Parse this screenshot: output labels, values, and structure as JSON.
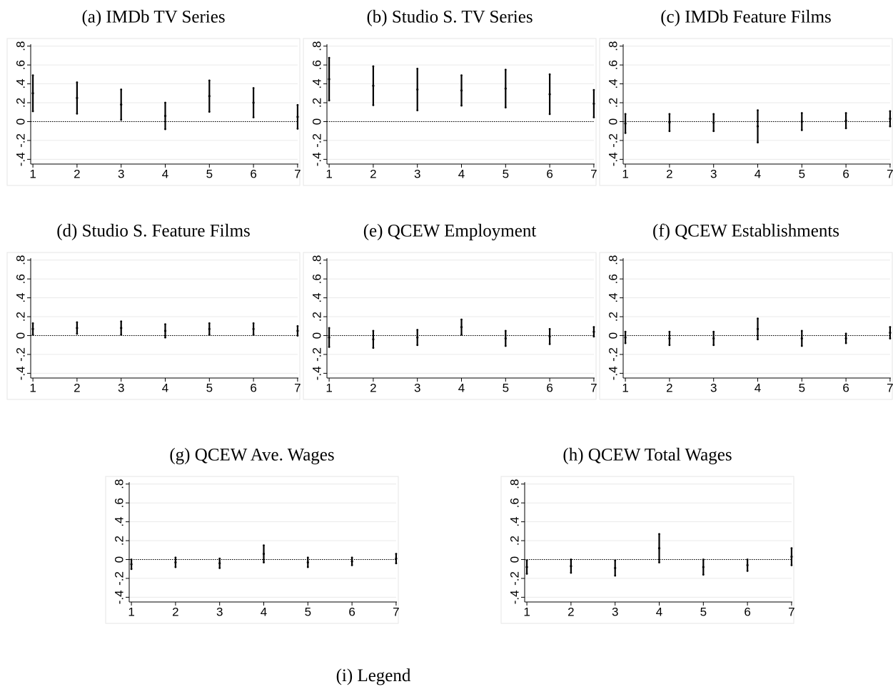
{
  "chart_data": [
    {
      "type": "errorbar",
      "title": "(a) IMDb TV Series",
      "x": [
        1,
        2,
        3,
        4,
        5,
        6,
        7
      ],
      "values": [
        0.3,
        0.25,
        0.18,
        0.06,
        0.27,
        0.2,
        0.05
      ],
      "errors": [
        0.19,
        0.165,
        0.16,
        0.14,
        0.165,
        0.155,
        0.125
      ],
      "xlim": [
        0.95,
        7.05
      ],
      "xticks": [
        1,
        2,
        3,
        4,
        5,
        6,
        7
      ],
      "ylim": [
        -0.45,
        0.82
      ],
      "yticks": [
        {
          "value": -0.4,
          "label": "-.4"
        },
        {
          "value": -0.2,
          "label": "-.2"
        },
        0,
        {
          "value": 0.2,
          "label": ".2"
        },
        {
          "value": 0.4,
          "label": ".4"
        },
        {
          "value": 0.6,
          "label": ".6"
        },
        {
          "value": 0.8,
          "label": ".8"
        }
      ],
      "grid": true,
      "hline": 0,
      "color": "#000000"
    },
    {
      "type": "errorbar",
      "title": "(b) Studio S. TV Series",
      "x": [
        1,
        2,
        3,
        4,
        5,
        6,
        7
      ],
      "values": [
        0.45,
        0.38,
        0.34,
        0.33,
        0.35,
        0.29,
        0.19
      ],
      "errors": [
        0.225,
        0.205,
        0.22,
        0.16,
        0.2,
        0.21,
        0.145
      ],
      "xlim": [
        0.95,
        7.05
      ],
      "xticks": [
        1,
        2,
        3,
        4,
        5,
        6,
        7
      ],
      "ylim": [
        -0.45,
        0.82
      ],
      "yticks": [
        {
          "value": -0.4,
          "label": "-.4"
        },
        {
          "value": -0.2,
          "label": "-.2"
        },
        0,
        {
          "value": 0.2,
          "label": ".2"
        },
        {
          "value": 0.4,
          "label": ".4"
        },
        {
          "value": 0.6,
          "label": ".6"
        },
        {
          "value": 0.8,
          "label": ".8"
        }
      ],
      "grid": true,
      "hline": 0,
      "color": "#000000"
    },
    {
      "type": "errorbar",
      "title": "(c) IMDb Feature Films",
      "x": [
        1,
        2,
        3,
        4,
        5,
        6,
        7
      ],
      "values": [
        -0.02,
        -0.01,
        -0.01,
        -0.05,
        0.0,
        0.01,
        0.03
      ],
      "errors": [
        0.1,
        0.09,
        0.09,
        0.17,
        0.09,
        0.08,
        0.08
      ],
      "xlim": [
        0.95,
        7.05
      ],
      "xticks": [
        1,
        2,
        3,
        4,
        5,
        6,
        7
      ],
      "ylim": [
        -0.45,
        0.82
      ],
      "yticks": [
        {
          "value": -0.4,
          "label": "-.4"
        },
        {
          "value": -0.2,
          "label": "-.2"
        },
        0,
        {
          "value": 0.2,
          "label": ".2"
        },
        {
          "value": 0.4,
          "label": ".4"
        },
        {
          "value": 0.6,
          "label": ".6"
        },
        {
          "value": 0.8,
          "label": ".8"
        }
      ],
      "grid": true,
      "hline": 0,
      "color": "#000000"
    },
    {
      "type": "errorbar",
      "title": "(d) Studio S. Feature Films",
      "x": [
        1,
        2,
        3,
        4,
        5,
        6,
        7
      ],
      "values": [
        0.07,
        0.08,
        0.08,
        0.05,
        0.07,
        0.07,
        0.05
      ],
      "errors": [
        0.06,
        0.06,
        0.07,
        0.07,
        0.06,
        0.06,
        0.05
      ],
      "xlim": [
        0.95,
        7.05
      ],
      "xticks": [
        1,
        2,
        3,
        4,
        5,
        6,
        7
      ],
      "ylim": [
        -0.45,
        0.82
      ],
      "yticks": [
        {
          "value": -0.4,
          "label": "-.4"
        },
        {
          "value": -0.2,
          "label": "-.2"
        },
        0,
        {
          "value": 0.2,
          "label": ".2"
        },
        {
          "value": 0.4,
          "label": ".4"
        },
        {
          "value": 0.6,
          "label": ".6"
        },
        {
          "value": 0.8,
          "label": ".8"
        }
      ],
      "grid": true,
      "hline": 0,
      "color": "#000000"
    },
    {
      "type": "errorbar",
      "title": "(e) QCEW Employment",
      "x": [
        1,
        2,
        3,
        4,
        5,
        6,
        7
      ],
      "values": [
        -0.02,
        -0.04,
        -0.02,
        0.09,
        -0.03,
        -0.01,
        0.04
      ],
      "errors": [
        0.1,
        0.09,
        0.08,
        0.08,
        0.08,
        0.08,
        0.05
      ],
      "xlim": [
        0.95,
        7.05
      ],
      "xticks": [
        1,
        2,
        3,
        4,
        5,
        6,
        7
      ],
      "ylim": [
        -0.45,
        0.82
      ],
      "yticks": [
        {
          "value": -0.4,
          "label": "-.4"
        },
        {
          "value": -0.2,
          "label": "-.2"
        },
        0,
        {
          "value": 0.2,
          "label": ".2"
        },
        {
          "value": 0.4,
          "label": ".4"
        },
        {
          "value": 0.6,
          "label": ".6"
        },
        {
          "value": 0.8,
          "label": ".8"
        }
      ],
      "grid": true,
      "hline": 0,
      "color": "#000000"
    },
    {
      "type": "errorbar",
      "title": "(f) QCEW Establishments",
      "x": [
        1,
        2,
        3,
        4,
        5,
        6,
        7
      ],
      "values": [
        -0.02,
        -0.03,
        -0.03,
        0.07,
        -0.03,
        -0.03,
        0.03
      ],
      "errors": [
        0.06,
        0.07,
        0.07,
        0.11,
        0.08,
        0.05,
        0.06
      ],
      "xlim": [
        0.95,
        7.05
      ],
      "xticks": [
        1,
        2,
        3,
        4,
        5,
        6,
        7
      ],
      "ylim": [
        -0.45,
        0.82
      ],
      "yticks": [
        {
          "value": -0.4,
          "label": "-.4"
        },
        {
          "value": -0.2,
          "label": "-.2"
        },
        0,
        {
          "value": 0.2,
          "label": ".2"
        },
        {
          "value": 0.4,
          "label": ".4"
        },
        {
          "value": 0.6,
          "label": ".6"
        },
        {
          "value": 0.8,
          "label": ".8"
        }
      ],
      "grid": true,
      "hline": 0,
      "color": "#000000"
    },
    {
      "type": "errorbar",
      "title": "(g) QCEW Ave. Wages",
      "x": [
        1,
        2,
        3,
        4,
        5,
        6,
        7
      ],
      "values": [
        -0.05,
        -0.03,
        -0.04,
        0.06,
        -0.03,
        -0.02,
        0.01
      ],
      "errors": [
        0.05,
        0.05,
        0.05,
        0.09,
        0.05,
        0.04,
        0.05
      ],
      "xlim": [
        0.95,
        7.05
      ],
      "xticks": [
        1,
        2,
        3,
        4,
        5,
        6,
        7
      ],
      "ylim": [
        -0.45,
        0.82
      ],
      "yticks": [
        {
          "value": -0.4,
          "label": "-.4"
        },
        {
          "value": -0.2,
          "label": "-.2"
        },
        0,
        {
          "value": 0.2,
          "label": ".2"
        },
        {
          "value": 0.4,
          "label": ".4"
        },
        {
          "value": 0.6,
          "label": ".6"
        },
        {
          "value": 0.8,
          "label": ".8"
        }
      ],
      "grid": true,
      "hline": 0,
      "color": "#000000"
    },
    {
      "type": "errorbar",
      "title": "(h) QCEW Total Wages",
      "x": [
        1,
        2,
        3,
        4,
        5,
        6,
        7
      ],
      "values": [
        -0.08,
        -0.07,
        -0.09,
        0.12,
        -0.08,
        -0.06,
        0.03
      ],
      "errors": [
        0.07,
        0.07,
        0.08,
        0.15,
        0.08,
        0.06,
        0.09
      ],
      "xlim": [
        0.95,
        7.05
      ],
      "xticks": [
        1,
        2,
        3,
        4,
        5,
        6,
        7
      ],
      "ylim": [
        -0.45,
        0.82
      ],
      "yticks": [
        {
          "value": -0.4,
          "label": "-.4"
        },
        {
          "value": -0.2,
          "label": "-.2"
        },
        0,
        {
          "value": 0.2,
          "label": ".2"
        },
        {
          "value": 0.4,
          "label": ".4"
        },
        {
          "value": 0.6,
          "label": ".6"
        },
        {
          "value": 0.8,
          "label": ".8"
        }
      ],
      "grid": true,
      "hline": 0,
      "color": "#000000"
    }
  ],
  "legend_caption": "(i) Legend"
}
